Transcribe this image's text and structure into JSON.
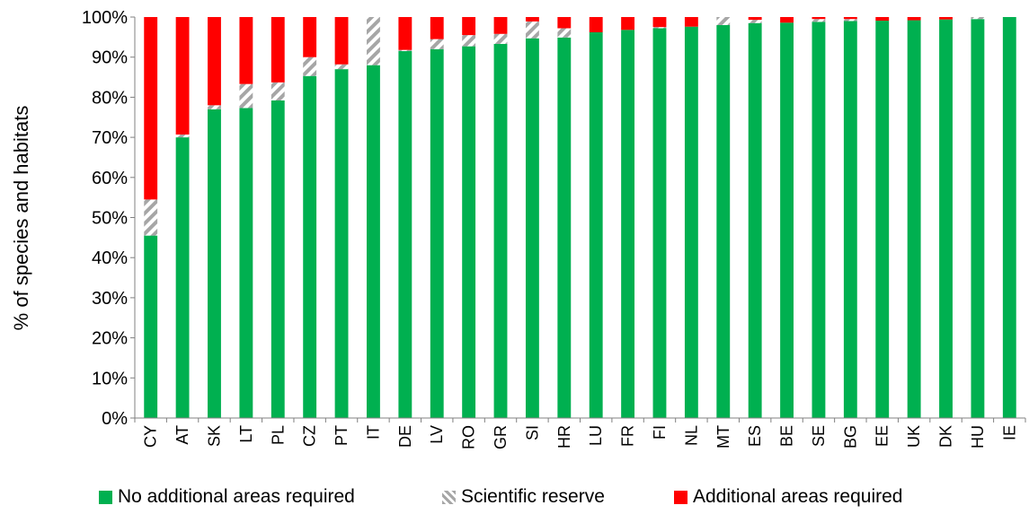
{
  "chart_data": {
    "type": "bar",
    "stacked": true,
    "ylabel": "% of species and habitats",
    "xlabel": "",
    "ylim": [
      0,
      100
    ],
    "yticks": [
      "0%",
      "10%",
      "20%",
      "30%",
      "40%",
      "50%",
      "60%",
      "70%",
      "80%",
      "90%",
      "100%"
    ],
    "grid": false,
    "legend_position": "bottom",
    "categories": [
      "CY",
      "AT",
      "SK",
      "LT",
      "PL",
      "CZ",
      "PT",
      "IT",
      "DE",
      "LV",
      "RO",
      "GR",
      "SI",
      "HR",
      "LU",
      "FR",
      "FI",
      "NL",
      "MT",
      "ES",
      "BE",
      "SE",
      "BG",
      "EE",
      "UK",
      "DK",
      "HU",
      "IE"
    ],
    "series": [
      {
        "name": "No additional areas required",
        "color": "#00b050",
        "pattern": "solid",
        "values": [
          45.5,
          70,
          77,
          77.3,
          79.2,
          85.3,
          87,
          88,
          91.5,
          92,
          92.7,
          93.3,
          94.7,
          94.9,
          96.2,
          96.8,
          97.2,
          97.6,
          98,
          98.5,
          98.6,
          98.8,
          99,
          99.1,
          99.2,
          99.4,
          99.5,
          100
        ]
      },
      {
        "name": "Scientific reserve",
        "color": "#a6a6a6",
        "pattern": "diagonal-hatch",
        "values": [
          9,
          0.7,
          1,
          6,
          4.5,
          4.7,
          1.2,
          12,
          0.3,
          2.5,
          2.8,
          2.5,
          4.2,
          2.3,
          0,
          0,
          0.3,
          0,
          2,
          0.8,
          0,
          0.7,
          0.5,
          0,
          0,
          0,
          0.5,
          0
        ]
      },
      {
        "name": "Additional areas required",
        "color": "#ff0000",
        "pattern": "solid",
        "values": [
          45.5,
          29.3,
          22,
          16.7,
          16.3,
          10,
          11.8,
          0,
          8.2,
          5.5,
          4.5,
          4.2,
          1.1,
          2.8,
          3.8,
          3.2,
          2.5,
          2.4,
          0,
          0.7,
          1.4,
          0.5,
          0.5,
          0.9,
          0.8,
          0.6,
          0,
          0
        ]
      }
    ]
  }
}
